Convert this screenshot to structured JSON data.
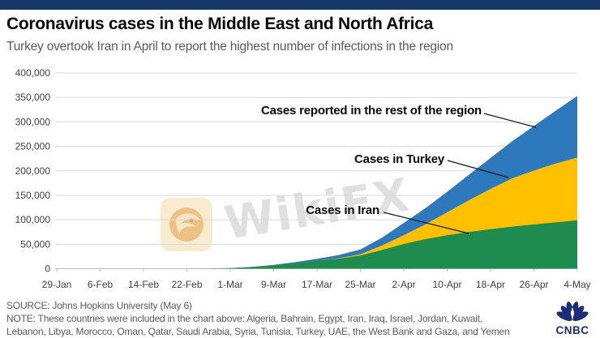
{
  "header": {
    "title": "Coronavirus cases in the Middle East and North Africa",
    "subtitle": "Turkey overtook Iran in April to report the highest number of infections in the region"
  },
  "chart_data": {
    "type": "area",
    "stacked": true,
    "title": "Coronavirus cases in the Middle East and North Africa",
    "xlabel": "",
    "ylabel": "",
    "ylim": [
      0,
      400000
    ],
    "grid": true,
    "legend_position": "inline-annotations",
    "y_ticks": [
      0,
      50000,
      100000,
      150000,
      200000,
      250000,
      300000,
      350000,
      400000
    ],
    "y_tick_labels": [
      "0",
      "50,000",
      "100,000",
      "150,000",
      "200,000",
      "250,000",
      "300,000",
      "350,000",
      "400,000"
    ],
    "x_tick_labels": [
      "29-Jan",
      "6-Feb",
      "14-Feb",
      "22-Feb",
      "1-Mar",
      "9-Mar",
      "17-Mar",
      "25-Mar",
      "2-Apr",
      "10-Apr",
      "18-Apr",
      "26-Apr",
      "4-May"
    ],
    "x": [
      "29-Jan",
      "2-Feb",
      "6-Feb",
      "10-Feb",
      "14-Feb",
      "18-Feb",
      "22-Feb",
      "26-Feb",
      "1-Mar",
      "5-Mar",
      "9-Mar",
      "13-Mar",
      "17-Mar",
      "21-Mar",
      "25-Mar",
      "29-Mar",
      "2-Apr",
      "6-Apr",
      "10-Apr",
      "14-Apr",
      "18-Apr",
      "22-Apr",
      "26-Apr",
      "30-Apr",
      "4-May"
    ],
    "series": [
      {
        "name": "Cases in Iran",
        "color": "#1E8C4E",
        "values": [
          0,
          0,
          0,
          0,
          0,
          0,
          28,
          139,
          978,
          3513,
          7161,
          11364,
          16169,
          20610,
          27017,
          38309,
          50468,
          60500,
          68192,
          74877,
          80868,
          85996,
          90481,
          94640,
          99000
        ]
      },
      {
        "name": "Cases in Turkey",
        "color": "#FFC000",
        "values": [
          0,
          0,
          0,
          0,
          0,
          0,
          0,
          0,
          0,
          0,
          0,
          5,
          98,
          947,
          2433,
          9217,
          18135,
          30217,
          47029,
          65111,
          82329,
          98674,
          110130,
          120204,
          128000
        ]
      },
      {
        "name": "Cases reported in the rest of the region",
        "color": "#2E79BC",
        "values": [
          5,
          6,
          7,
          8,
          9,
          12,
          40,
          80,
          160,
          350,
          800,
          2000,
          4000,
          6500,
          10000,
          16000,
          25000,
          33000,
          42000,
          52000,
          63000,
          76000,
          91000,
          108000,
          126000
        ]
      }
    ]
  },
  "footer": {
    "source": "SOURCE: Johns Hopkins University (May 6)",
    "note_line1": "NOTE: These countries were included in the chart above: Algeria, Bahrain, Egypt, Iran, Iraq, Israel, Jordan, Kuwait,",
    "note_line2": "Lebanon, Libya, Morocco, Oman, Qatar, Saudi Arabia, Syria, Tunisia, Turkey, UAE, the West Bank and Gaza, and Yemen"
  },
  "branding": {
    "logo_text": "CNBC"
  },
  "watermark": {
    "text": "WikiFX"
  },
  "colors": {
    "topbar": "#17386B",
    "iran_green": "#1E8C4E",
    "turkey_yellow": "#FFC000",
    "rest_blue": "#2E79BC",
    "gridline": "#D9D9D9",
    "axis": "#BFBFBF",
    "tick_text": "#404040",
    "cnbc_navy": "#1D2E79"
  }
}
